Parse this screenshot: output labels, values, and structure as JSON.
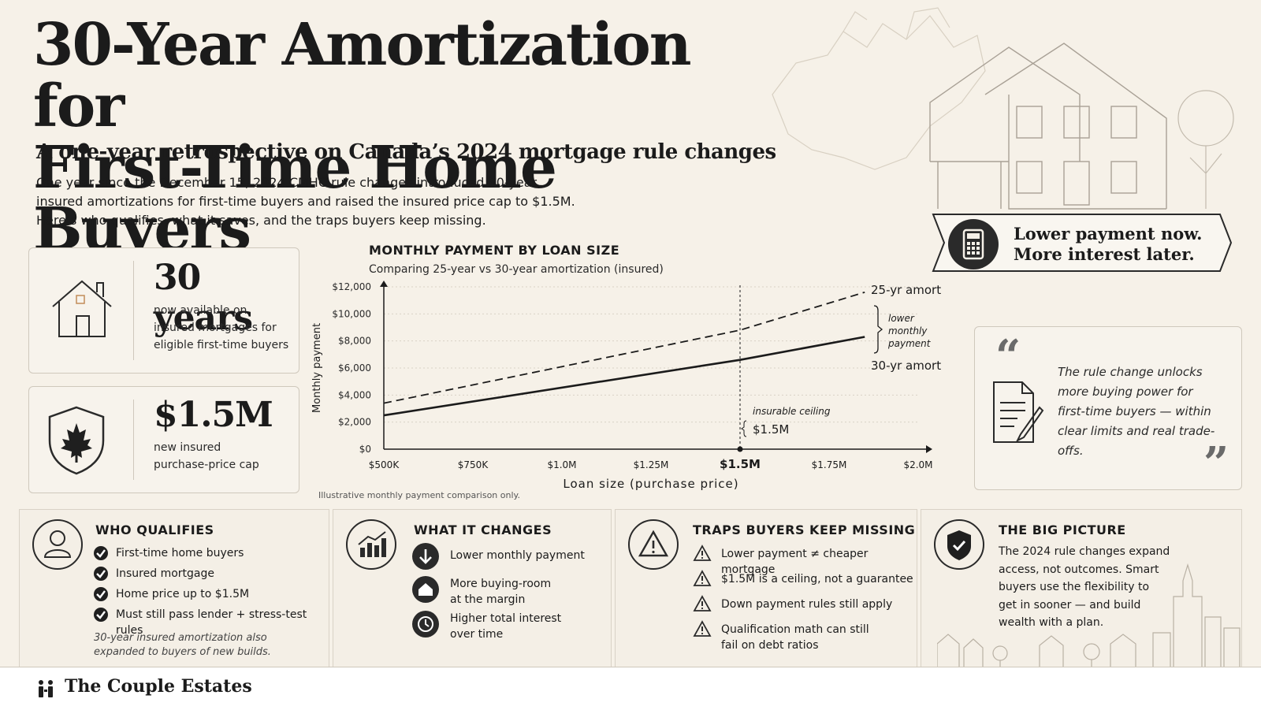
{
  "header": {
    "title_line1": "30-Year Amortization for",
    "title_line2": "First-Time Home Buyers",
    "subtitle": "A one-year retrospective on Canada’s 2024 mortgage rule changes",
    "intro_line1": "One year since the December 15, 2024 CMHC rule changes introduced 30-year",
    "intro_line2": "insured amortizations for first-time buyers and raised the insured price cap to $1.5M.",
    "intro_line3": "Here’s who qualifies, what it saves, and the traps buyers keep missing."
  },
  "banner": {
    "line1": "Lower payment now.",
    "line2": "More interest later.",
    "icon": "calculator-icon"
  },
  "stats": {
    "years": {
      "value": "30 years",
      "line1": "now available on",
      "line2": "insured mortgages for",
      "line3": "eligible first-time buyers",
      "icon": "house-icon"
    },
    "cap": {
      "value": "$1.5M",
      "line1": "new insured",
      "line2": "purchase-price cap",
      "icon": "maple-leaf-shield-icon"
    }
  },
  "chart_data": {
    "type": "line",
    "title": "MONTHLY PAYMENT BY LOAN SIZE",
    "subtitle": "Comparing 25-year vs 30-year amortization (insured)",
    "xlabel": "Loan size (purchase price)",
    "ylabel": "Monthly payment",
    "x_ticks": [
      "$500K",
      "$750K",
      "$1.0M",
      "$1.25M",
      "$1.5M",
      "$1.75M",
      "$2.0M"
    ],
    "y_ticks": [
      "$0",
      "$2,000",
      "$4,000",
      "$6,000",
      "$8,000",
      "$10,000",
      "$12,000"
    ],
    "xlim": [
      500000,
      2000000
    ],
    "ylim": [
      0,
      12000
    ],
    "series": [
      {
        "name": "25-yr amort",
        "style": "dashed",
        "x": [
          500000,
          1500000,
          1850000
        ],
        "y": [
          3400,
          8800,
          11600
        ]
      },
      {
        "name": "30-yr amort",
        "style": "solid",
        "x": [
          500000,
          1500000,
          1850000
        ],
        "y": [
          2500,
          6600,
          8300
        ]
      }
    ],
    "annotations": {
      "gap_label_line1": "lower",
      "gap_label_line2": "monthly",
      "gap_label_line3": "payment",
      "ceiling_label": "insurable ceiling",
      "ceiling_value": "$1.5M",
      "ceiling_x": 1500000
    },
    "note": "Illustrative monthly payment comparison only.",
    "grid": true
  },
  "quote": {
    "line1": "The rule change unlocks",
    "line2": "more buying power for",
    "line3": "first-time buyers — within",
    "line4": "clear limits and real trade-offs."
  },
  "panels": {
    "qualifies": {
      "title": "WHO QUALIFIES",
      "items": [
        "First-time home buyers",
        "Insured mortgage",
        "Home price up to $1.5M",
        "Must still pass lender + stress-test rules"
      ],
      "note_line1": "30-year insured amortization also",
      "note_line2": "expanded to buyers of new builds."
    },
    "changes": {
      "title": "WHAT IT CHANGES",
      "item1": "Lower monthly payment",
      "item2_line1": "More buying-room",
      "item2_line2": "at the margin",
      "item3_line1": "Higher total interest",
      "item3_line2": "over time"
    },
    "traps": {
      "title": "TRAPS BUYERS KEEP MISSING",
      "item1": "Lower payment ≠ cheaper mortgage",
      "item2": "$1.5M is a ceiling, not a guarantee",
      "item3": "Down payment rules still apply",
      "item4_line1": "Qualification math can still",
      "item4_line2": "fail on debt ratios"
    },
    "big_picture": {
      "title": "THE BIG PICTURE",
      "line1": "The 2024 rule changes expand",
      "line2": "access, not outcomes. Smart",
      "line3": "buyers use the flexibility to",
      "line4": "get in sooner — and build",
      "line5": "wealth with a plan."
    }
  },
  "footer": {
    "brand": "The Couple Estates"
  },
  "colors": {
    "background": "#f6f1e8",
    "ink": "#1b1b1b",
    "card_border": "#cfc8bc"
  }
}
